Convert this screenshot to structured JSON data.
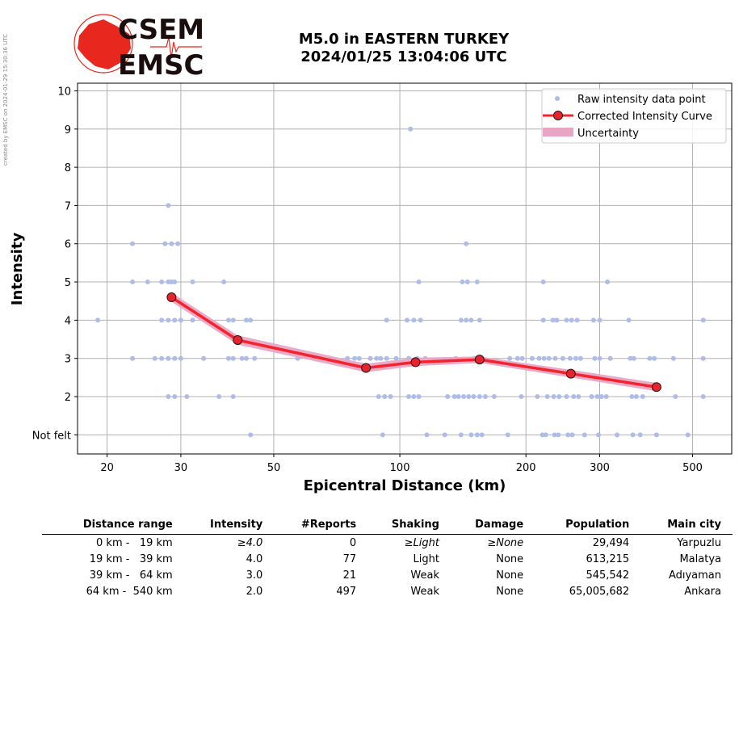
{
  "watermark": "created by EMSC on 2024-01-29 15:30:36 UTC",
  "logo": {
    "line1": "CSEM",
    "line2": "EMSC",
    "colors": {
      "globe": "#e8281e",
      "text": "#1a0d0d"
    }
  },
  "title": {
    "line1": "M5.0 in EASTERN TURKEY",
    "line2": "2024/01/25 13:04:06 UTC"
  },
  "chart_data": {
    "type": "scatter",
    "xlabel": "Epicentral Distance (km)",
    "ylabel": "Intensity",
    "xscale": "log",
    "xlim": [
      17,
      620
    ],
    "ylim": [
      0.5,
      10.2
    ],
    "xticks": [
      20,
      30,
      50,
      100,
      200,
      300,
      500
    ],
    "yticks": [
      1,
      2,
      3,
      4,
      5,
      6,
      7,
      8,
      9,
      10
    ],
    "ytick_labels": [
      "Not felt",
      "2",
      "3",
      "4",
      "5",
      "6",
      "7",
      "8",
      "9",
      "10"
    ],
    "grid": true,
    "legend": {
      "placement": "top-right",
      "entries": [
        "Raw intensity data point",
        "Corrected Intensity Curve",
        "Uncertainty"
      ]
    },
    "colors": {
      "raw": "#aebde8",
      "curve": "#f5232d",
      "marker": "#e8232d",
      "uncertainty": "#e8a6c4"
    },
    "raw_points": [
      [
        19,
        4
      ],
      [
        23,
        6
      ],
      [
        23,
        5
      ],
      [
        23,
        3
      ],
      [
        25,
        5
      ],
      [
        26,
        3
      ],
      [
        27,
        5
      ],
      [
        27,
        4
      ],
      [
        27,
        3
      ],
      [
        27.5,
        6
      ],
      [
        28,
        7
      ],
      [
        28,
        5
      ],
      [
        28,
        4
      ],
      [
        28,
        3
      ],
      [
        28,
        2
      ],
      [
        28.5,
        6
      ],
      [
        28.5,
        5
      ],
      [
        29,
        5
      ],
      [
        29,
        4
      ],
      [
        29,
        3
      ],
      [
        29,
        2
      ],
      [
        29.5,
        6
      ],
      [
        30,
        4
      ],
      [
        30,
        3
      ],
      [
        31,
        2
      ],
      [
        32,
        4
      ],
      [
        32,
        5
      ],
      [
        34,
        3
      ],
      [
        37,
        2
      ],
      [
        38,
        5
      ],
      [
        39,
        4
      ],
      [
        39,
        3
      ],
      [
        40,
        4
      ],
      [
        40,
        3
      ],
      [
        40,
        2
      ],
      [
        42,
        3
      ],
      [
        43,
        4
      ],
      [
        43,
        3
      ],
      [
        44,
        4
      ],
      [
        44,
        1
      ],
      [
        45,
        3
      ],
      [
        57,
        3
      ],
      [
        75,
        3
      ],
      [
        78,
        3
      ],
      [
        80,
        3
      ],
      [
        80,
        2.8
      ],
      [
        85,
        3
      ],
      [
        88,
        3
      ],
      [
        89,
        2
      ],
      [
        90,
        3
      ],
      [
        91,
        1
      ],
      [
        92,
        2
      ],
      [
        93,
        4
      ],
      [
        93,
        3
      ],
      [
        95,
        2
      ],
      [
        98,
        3
      ],
      [
        104,
        4
      ],
      [
        105,
        2
      ],
      [
        105,
        3
      ],
      [
        106,
        9
      ],
      [
        108,
        4
      ],
      [
        108,
        2
      ],
      [
        110,
        3
      ],
      [
        111,
        5
      ],
      [
        111,
        2
      ],
      [
        112,
        4
      ],
      [
        115,
        3
      ],
      [
        116,
        1
      ],
      [
        128,
        1
      ],
      [
        130,
        2
      ],
      [
        135,
        2
      ],
      [
        136,
        3
      ],
      [
        138,
        2
      ],
      [
        140,
        4
      ],
      [
        140,
        1
      ],
      [
        141,
        5
      ],
      [
        142,
        2
      ],
      [
        144,
        6
      ],
      [
        144,
        4
      ],
      [
        145,
        5
      ],
      [
        146,
        2
      ],
      [
        148,
        1
      ],
      [
        148,
        4
      ],
      [
        150,
        2
      ],
      [
        150,
        3
      ],
      [
        153,
        1
      ],
      [
        153,
        5
      ],
      [
        155,
        4
      ],
      [
        155,
        2
      ],
      [
        157,
        1
      ],
      [
        160,
        2
      ],
      [
        168,
        2
      ],
      [
        181,
        1
      ],
      [
        183,
        3
      ],
      [
        191,
        3
      ],
      [
        195,
        2
      ],
      [
        196,
        3
      ],
      [
        207,
        3
      ],
      [
        213,
        2
      ],
      [
        215,
        3
      ],
      [
        219,
        1
      ],
      [
        220,
        5
      ],
      [
        220,
        4
      ],
      [
        221,
        3
      ],
      [
        223,
        1
      ],
      [
        225,
        2
      ],
      [
        227,
        3
      ],
      [
        232,
        4
      ],
      [
        233,
        2
      ],
      [
        234,
        1
      ],
      [
        235,
        3
      ],
      [
        237,
        4
      ],
      [
        239,
        1
      ],
      [
        240,
        2
      ],
      [
        245,
        3
      ],
      [
        250,
        4
      ],
      [
        250,
        2
      ],
      [
        252,
        1
      ],
      [
        255,
        3
      ],
      [
        257,
        4
      ],
      [
        258,
        1
      ],
      [
        260,
        2
      ],
      [
        263,
        3
      ],
      [
        265,
        4
      ],
      [
        267,
        2
      ],
      [
        270,
        3
      ],
      [
        276,
        1
      ],
      [
        287,
        2
      ],
      [
        290,
        4
      ],
      [
        292,
        3
      ],
      [
        296,
        2
      ],
      [
        298,
        1
      ],
      [
        300,
        3
      ],
      [
        300,
        4
      ],
      [
        303,
        2
      ],
      [
        311,
        2
      ],
      [
        313,
        5
      ],
      [
        318,
        3
      ],
      [
        330,
        1
      ],
      [
        352,
        4
      ],
      [
        355,
        3
      ],
      [
        358,
        2
      ],
      [
        360,
        1
      ],
      [
        362,
        3
      ],
      [
        367,
        2
      ],
      [
        375,
        1
      ],
      [
        380,
        2
      ],
      [
        395,
        3
      ],
      [
        405,
        3
      ],
      [
        410,
        1
      ],
      [
        450,
        3
      ],
      [
        455,
        2
      ],
      [
        487,
        1
      ],
      [
        530,
        4
      ],
      [
        530,
        3
      ],
      [
        530,
        2
      ]
    ],
    "curve": {
      "x": [
        28.5,
        41,
        83,
        109,
        155,
        256,
        410
      ],
      "y": [
        4.6,
        3.48,
        2.75,
        2.9,
        2.97,
        2.6,
        2.25
      ],
      "upper": [
        4.72,
        3.6,
        2.86,
        3.02,
        3.05,
        2.7,
        2.36
      ],
      "lower": [
        4.48,
        3.36,
        2.64,
        2.8,
        2.88,
        2.5,
        2.14
      ]
    }
  },
  "table": {
    "headers": [
      "Distance range",
      "Intensity",
      "#Reports",
      "Shaking",
      "Damage",
      "Population",
      "Main city"
    ],
    "rows": [
      {
        "range": "0 km -   19 km",
        "intensity": "≥4.0",
        "reports": "0",
        "shaking": "≥Light",
        "damage": "≥None",
        "population": "29,494",
        "city": "Yarpuzlu"
      },
      {
        "range": "19 km -   39 km",
        "intensity": "4.0",
        "reports": "77",
        "shaking": "Light",
        "damage": "None",
        "population": "613,215",
        "city": "Malatya"
      },
      {
        "range": "39 km -   64 km",
        "intensity": "3.0",
        "reports": "21",
        "shaking": "Weak",
        "damage": "None",
        "population": "545,542",
        "city": "Adıyaman"
      },
      {
        "range": "64 km -  540 km",
        "intensity": "2.0",
        "reports": "497",
        "shaking": "Weak",
        "damage": "None",
        "population": "65,005,682",
        "city": "Ankara"
      }
    ]
  }
}
